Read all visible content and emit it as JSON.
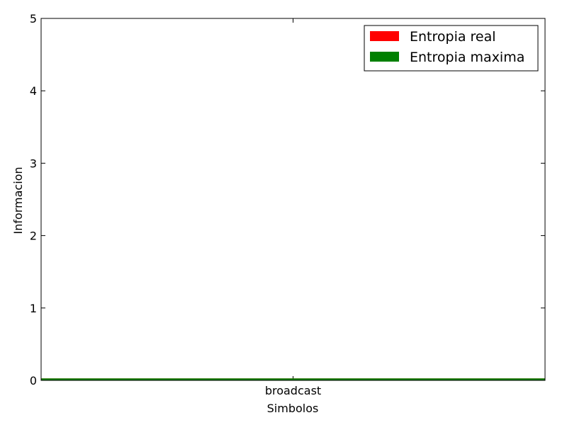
{
  "chart_data": {
    "type": "line",
    "title": "",
    "xlabel": "Simbolos",
    "ylabel": "Informacion",
    "categories": [
      "broadcast"
    ],
    "ylim": [
      0,
      5
    ],
    "yticks": [
      "0",
      "1",
      "2",
      "3",
      "4",
      "5"
    ],
    "grid": false,
    "legend_position": "top-right",
    "series": [
      {
        "name": "Entropia real",
        "color": "#ff0000",
        "values": [
          0
        ]
      },
      {
        "name": "Entropia maxima",
        "color": "#008000",
        "values": [
          0
        ]
      }
    ]
  }
}
